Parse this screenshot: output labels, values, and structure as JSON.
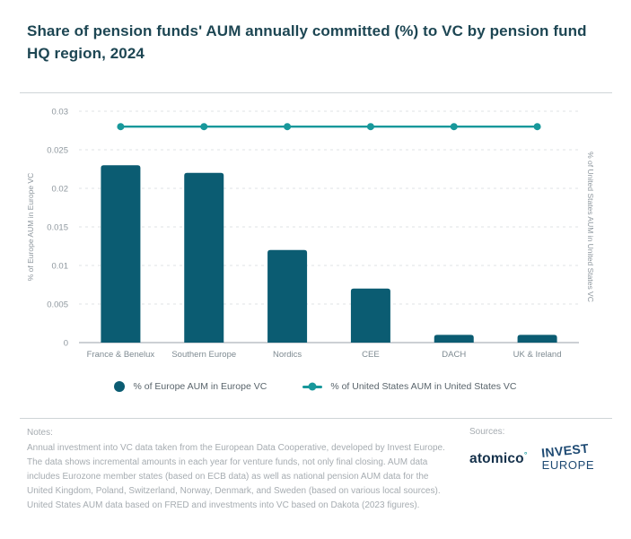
{
  "title": "Share of pension funds' AUM annually committed (%) to VC by pension fund HQ region, 2024",
  "chart_data": {
    "type": "bar",
    "categories": [
      "France & Benelux",
      "Southern Europe",
      "Nordics",
      "CEE",
      "DACH",
      "UK & Ireland"
    ],
    "series": [
      {
        "name": "% of Europe AUM in Europe VC",
        "type": "bar",
        "color": "#0b5c72",
        "values": [
          0.023,
          0.022,
          0.012,
          0.007,
          0.001,
          0.001
        ]
      },
      {
        "name": "% of United States AUM in United States VC",
        "type": "line",
        "color": "#18989b",
        "values": [
          0.028,
          0.028,
          0.028,
          0.028,
          0.028,
          0.028
        ]
      }
    ],
    "ylabel_left": "% of Europe AUM in Europe VC",
    "ylabel_right": "% of United States AUM in United States VC",
    "ylim": [
      0,
      0.03
    ],
    "yticks": [
      0,
      0.005,
      0.01,
      0.015,
      0.02,
      0.025,
      0.03
    ],
    "grid": "dashed horizontal",
    "legend_position": "bottom center"
  },
  "notes": {
    "label": "Notes:",
    "text": "Annual investment into VC data taken from the European Data Cooperative, developed by Invest Europe. The data shows incremental amounts in each year for venture funds, not only final closing. AUM data includes Eurozone member states (based on ECB data) as well as national pension AUM data for the United Kingdom, Poland, Switzerland, Norway, Denmark, and Sweden (based on various local sources). United States AUM data based on FRED and investments into VC based on Dakota (2023 figures)."
  },
  "sources": {
    "label": "Sources:",
    "atomico": "atomico",
    "atomico_mark": "°",
    "invest_line1": "INVEST",
    "invest_line2": "EUROPE"
  }
}
